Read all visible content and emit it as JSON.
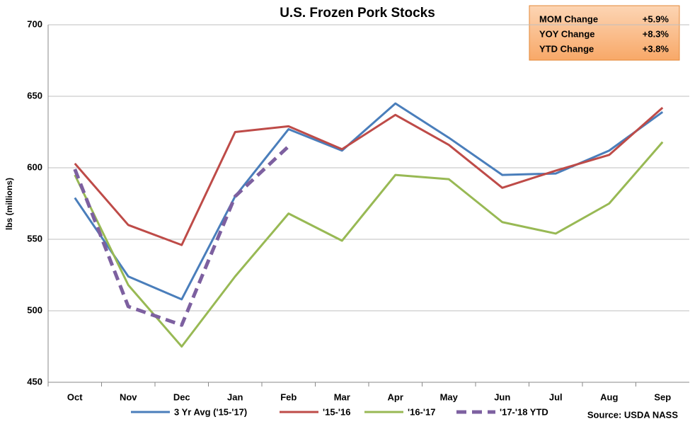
{
  "chart_data": {
    "type": "line",
    "title": "U.S. Frozen Pork Stocks",
    "y_label": "lbs (millions)",
    "categories": [
      "Oct",
      "Nov",
      "Dec",
      "Jan",
      "Feb",
      "Mar",
      "Apr",
      "May",
      "Jun",
      "Jul",
      "Aug",
      "Sep"
    ],
    "series": [
      {
        "name": "3 Yr Avg ('15-'17)",
        "color": "#4a7ebb",
        "values": [
          579,
          524,
          508,
          580,
          627,
          612,
          645,
          621,
          595,
          596,
          612,
          639
        ]
      },
      {
        "name": "'15-'16",
        "color": "#be4b48",
        "values": [
          603,
          560,
          546,
          625,
          629,
          613,
          637,
          616,
          586,
          598,
          609,
          642
        ]
      },
      {
        "name": "'16-'17",
        "color": "#98b954",
        "values": [
          595,
          518,
          475,
          524,
          568,
          549,
          595,
          592,
          562,
          554,
          575,
          618
        ]
      },
      {
        "name": "'17-'18 YTD",
        "color": "#7d60a0",
        "dashed": true,
        "values": [
          599,
          503,
          490,
          580,
          615,
          null,
          null,
          null,
          null,
          null,
          null,
          null
        ]
      }
    ],
    "ylim": [
      450,
      700
    ],
    "yticks": [
      450,
      500,
      550,
      600,
      650,
      700
    ],
    "grid": true,
    "info_box": [
      {
        "label": "MOM Change",
        "value": "+5.9%"
      },
      {
        "label": "YOY Change",
        "value": "+8.3%"
      },
      {
        "label": "YTD Change",
        "value": "+3.8%"
      }
    ],
    "source": "Source: USDA NASS"
  }
}
